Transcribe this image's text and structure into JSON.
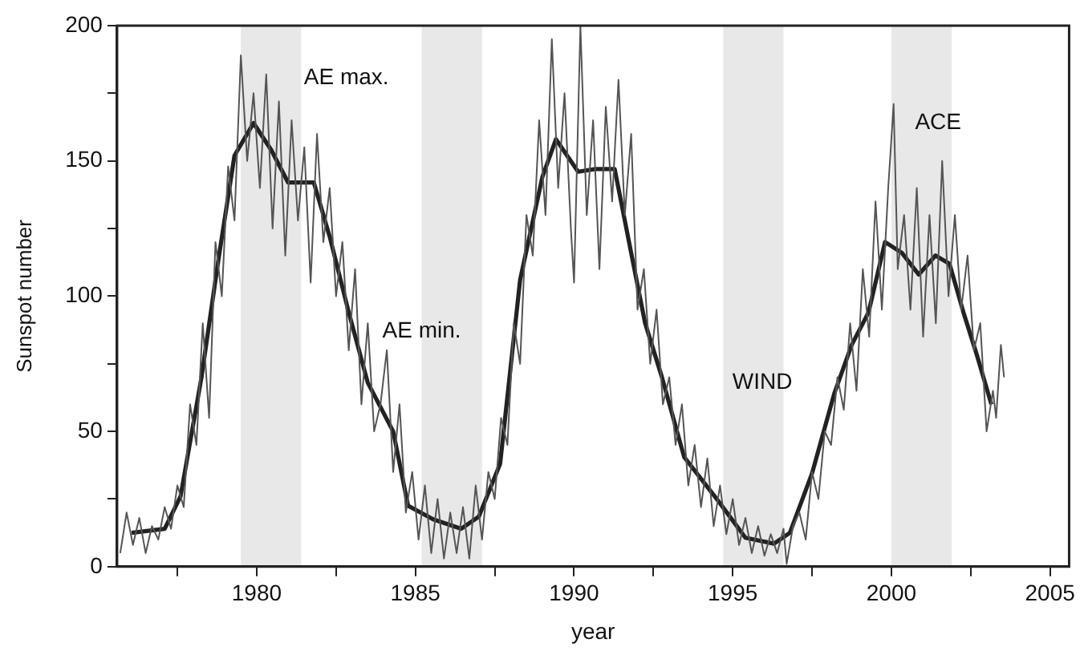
{
  "chart_data": {
    "type": "line",
    "xlabel": "year",
    "ylabel": "Sunspot number",
    "xlim": [
      1975.6,
      2005.6
    ],
    "ylim": [
      0,
      200
    ],
    "xticks": [
      {
        "value": 1977.5,
        "label": null
      },
      1980,
      {
        "value": 1982.5,
        "label": null
      },
      1985,
      {
        "value": 1987.5,
        "label": null
      },
      1990,
      {
        "value": 1992.5,
        "label": null
      },
      1995,
      {
        "value": 1997.5,
        "label": null
      },
      2000,
      {
        "value": 2002.5,
        "label": null
      },
      2005
    ],
    "yticks": [
      0,
      {
        "value": 25,
        "label": null
      },
      50,
      {
        "value": 75,
        "label": null
      },
      100,
      {
        "value": 125,
        "label": null
      },
      150,
      {
        "value": 175,
        "label": null
      },
      200
    ],
    "grid": false,
    "legend": false,
    "marker": "none",
    "line_style": "solid",
    "series": [
      {
        "color": "#555555",
        "x": [
          1975.7,
          1975.9,
          1976.1,
          1976.3,
          1976.5,
          1976.7,
          1976.9,
          1977.1,
          1977.3,
          1977.5,
          1977.7,
          1977.9,
          1978.1,
          1978.3,
          1978.5,
          1978.7,
          1978.9,
          1979.1,
          1979.3,
          1979.5,
          1979.7,
          1979.9,
          1980.1,
          1980.3,
          1980.5,
          1980.7,
          1980.9,
          1981.1,
          1981.3,
          1981.5,
          1981.7,
          1981.9,
          1982.1,
          1982.3,
          1982.5,
          1982.7,
          1982.9,
          1983.1,
          1983.3,
          1983.5,
          1983.7,
          1983.9,
          1984.1,
          1984.3,
          1984.5,
          1984.7,
          1984.9,
          1985.1,
          1985.3,
          1985.5,
          1985.7,
          1985.9,
          1986.1,
          1986.3,
          1986.5,
          1986.7,
          1986.9,
          1987.1,
          1987.3,
          1987.5,
          1987.7,
          1987.9,
          1988.1,
          1988.3,
          1988.5,
          1988.7,
          1988.9,
          1989.1,
          1989.3,
          1989.5,
          1989.7,
          1989.9,
          1990.0,
          1990.2,
          1990.4,
          1990.6,
          1990.8,
          1991.0,
          1991.2,
          1991.4,
          1991.6,
          1991.8,
          1992.0,
          1992.2,
          1992.4,
          1992.6,
          1992.8,
          1993.0,
          1993.2,
          1993.4,
          1993.6,
          1993.8,
          1994.0,
          1994.2,
          1994.4,
          1994.6,
          1994.8,
          1995.0,
          1995.2,
          1995.4,
          1995.6,
          1995.8,
          1996.0,
          1996.2,
          1996.4,
          1996.6,
          1996.7,
          1996.9,
          1997.1,
          1997.3,
          1997.5,
          1997.7,
          1997.9,
          1998.1,
          1998.3,
          1998.5,
          1998.7,
          1998.9,
          1999.1,
          1999.3,
          1999.5,
          1999.7,
          1999.9,
          2000.07,
          2000.2,
          2000.4,
          2000.6,
          2000.8,
          2001.0,
          2001.2,
          2001.4,
          2001.6,
          2001.8,
          2002.0,
          2002.2,
          2002.4,
          2002.6,
          2002.8,
          2003.0,
          2003.2,
          2003.3,
          2003.45,
          2003.55
        ],
        "values": [
          5,
          20,
          8,
          18,
          5,
          15,
          10,
          22,
          14,
          30,
          22,
          60,
          45,
          90,
          55,
          120,
          100,
          148,
          128,
          189,
          150,
          175,
          140,
          182,
          125,
          172,
          115,
          165,
          128,
          155,
          105,
          160,
          120,
          140,
          100,
          120,
          80,
          110,
          60,
          90,
          50,
          60,
          80,
          35,
          60,
          20,
          35,
          10,
          30,
          5,
          25,
          3,
          20,
          5,
          22,
          3,
          30,
          10,
          35,
          25,
          55,
          45,
          90,
          75,
          130,
          115,
          165,
          130,
          195,
          140,
          175,
          125,
          105,
          200,
          130,
          165,
          110,
          170,
          135,
          180,
          130,
          160,
          95,
          110,
          75,
          95,
          60,
          70,
          45,
          60,
          30,
          45,
          22,
          40,
          15,
          30,
          12,
          25,
          8,
          18,
          5,
          15,
          4,
          12,
          5,
          14,
          1,
          15,
          20,
          10,
          35,
          25,
          50,
          45,
          70,
          58,
          90,
          65,
          110,
          85,
          135,
          95,
          140,
          171,
          110,
          130,
          95,
          140,
          85,
          130,
          90,
          150,
          100,
          130,
          95,
          115,
          80,
          90,
          50,
          65,
          55,
          82,
          70
        ]
      },
      {
        "color": "#222222",
        "x": [
          1976.06,
          1977.1,
          1977.6,
          1978.26,
          1978.8,
          1979.3,
          1979.9,
          1980.46,
          1980.99,
          1981.8,
          1982.3,
          1982.9,
          1983.5,
          1984.3,
          1984.77,
          1985.56,
          1986.44,
          1987.0,
          1987.67,
          1988.3,
          1989.0,
          1989.43,
          1990.13,
          1990.66,
          1991.28,
          1991.8,
          1992.24,
          1992.77,
          1993.47,
          1994.53,
          1995.4,
          1996.3,
          1996.8,
          1997.5,
          1998.2,
          1998.75,
          1999.28,
          1999.8,
          2000.33,
          2000.86,
          2001.39,
          2001.83,
          2002.27,
          2002.7,
          2003.15
        ],
        "values": [
          12.5,
          14,
          26,
          70,
          114,
          152,
          164,
          154,
          142,
          142,
          122,
          94,
          68,
          50,
          22.5,
          17.5,
          14,
          18.5,
          38,
          106,
          144,
          158,
          146,
          147,
          147,
          116,
          90,
          70,
          40.5,
          24.5,
          10.7,
          8.5,
          12.5,
          34.5,
          64,
          82,
          94,
          120,
          116,
          108,
          115,
          112,
          94,
          78,
          60
        ]
      }
    ],
    "bands": [
      {
        "axis": "x",
        "from": 1979.5,
        "to": 1981.4,
        "label": "AE max."
      },
      {
        "axis": "x",
        "from": 1985.2,
        "to": 1987.1,
        "label": "AE min."
      },
      {
        "axis": "x",
        "from": 1994.7,
        "to": 1996.6,
        "label": "WIND"
      },
      {
        "axis": "x",
        "from": 2000.0,
        "to": 2001.9,
        "label": "ACE"
      }
    ]
  }
}
